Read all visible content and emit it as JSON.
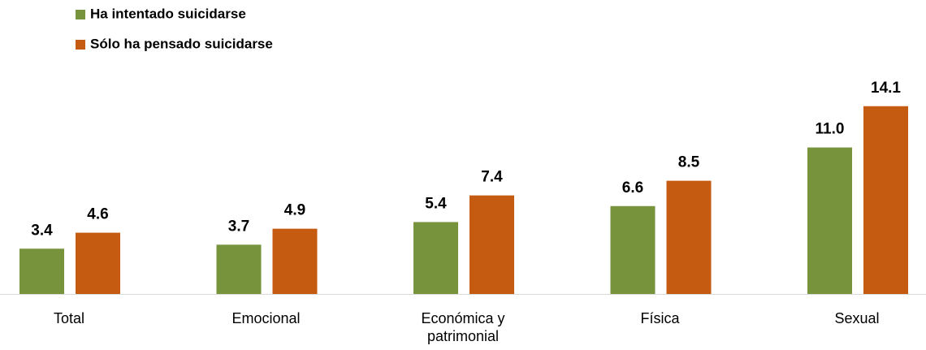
{
  "chart_data": {
    "type": "bar",
    "categories": [
      "Total",
      "Emocional",
      "Económica y patrimonial",
      "Física",
      "Sexual"
    ],
    "series": [
      {
        "name": "Ha intentado suicidarse",
        "color": "#77933c",
        "values": [
          3.4,
          3.7,
          5.4,
          6.6,
          11.0
        ],
        "value_labels": [
          "3.4",
          "3.7",
          "5.4",
          "6.6",
          "11.0"
        ]
      },
      {
        "name": "Sólo ha pensado suicidarse",
        "color": "#c55a11",
        "values": [
          4.6,
          4.9,
          7.4,
          8.5,
          14.1
        ],
        "value_labels": [
          "4.6",
          "4.9",
          "7.4",
          "8.5",
          "14.1"
        ]
      }
    ],
    "ylim": [
      0,
      15
    ],
    "legend": "top-left"
  }
}
